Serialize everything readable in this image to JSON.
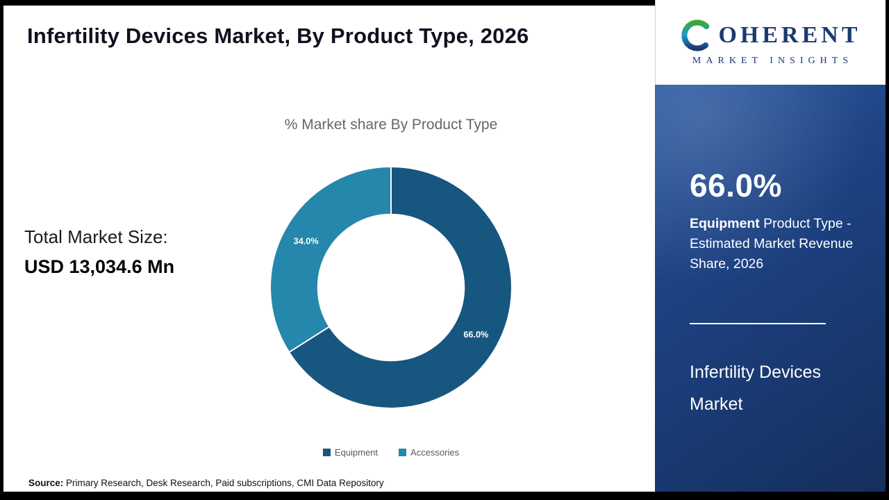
{
  "header": {
    "title": "Infertility Devices Market, By Product Type, 2026"
  },
  "logo": {
    "letter": "C",
    "word_rest": "OHERENT",
    "subtitle": "MARKET INSIGHTS"
  },
  "main": {
    "total_market_label": "Total Market Size:",
    "total_market_value": "USD 13,034.6 Mn"
  },
  "chart_data": {
    "type": "pie",
    "donut": true,
    "title": "% Market share By Product Type",
    "categories": [
      "Equipment",
      "Accessories"
    ],
    "values": [
      66.0,
      34.0
    ],
    "slice_labels": [
      "66.0%",
      "34.0%"
    ],
    "colors": [
      "#17567f",
      "#2487ab"
    ],
    "legend_position": "bottom"
  },
  "sidebar": {
    "stat_value": "66.0%",
    "stat_desc_bold": "Equipment",
    "stat_desc_rest": " Product Type - Estimated Market Revenue Share, 2026",
    "panel_title": "Infertility Devices Market"
  },
  "footer": {
    "source_label": "Source:",
    "source_text": " Primary Research, Desk Research, Paid subscriptions, CMI Data Repository"
  }
}
